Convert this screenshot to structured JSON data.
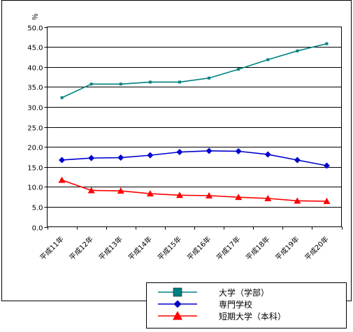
{
  "chart_data": {
    "type": "line",
    "title": "",
    "xlabel": "",
    "ylabel": "％",
    "ylim": [
      0,
      50
    ],
    "y_ticks": [
      "0.0",
      "5.0",
      "10.0",
      "15.0",
      "20.0",
      "25.0",
      "30.0",
      "35.0",
      "40.0",
      "45.0",
      "50.0"
    ],
    "grid": true,
    "legend_position": "bottom-right",
    "categories": [
      "平成11年",
      "平成12年",
      "平成13年",
      "平成14年",
      "平成15年",
      "平成16年",
      "平成17年",
      "平成18年",
      "平成19年",
      "平成20年"
    ],
    "series": [
      {
        "name": "大学（学部）",
        "color": "#008080",
        "marker": "small-square",
        "values": [
          32.3,
          35.7,
          35.7,
          36.2,
          36.2,
          37.2,
          39.4,
          41.8,
          44.0,
          45.8
        ]
      },
      {
        "name": "専門学校",
        "color": "#0000cc",
        "marker": "diamond",
        "values": [
          16.7,
          17.2,
          17.3,
          17.9,
          18.7,
          19.0,
          18.9,
          18.1,
          16.7,
          15.3
        ]
      },
      {
        "name": "短期大学（本科）",
        "color": "#ff0000",
        "marker": "triangle",
        "values": [
          11.7,
          9.1,
          9.0,
          8.3,
          7.9,
          7.8,
          7.4,
          7.1,
          6.5,
          6.4
        ]
      }
    ]
  }
}
